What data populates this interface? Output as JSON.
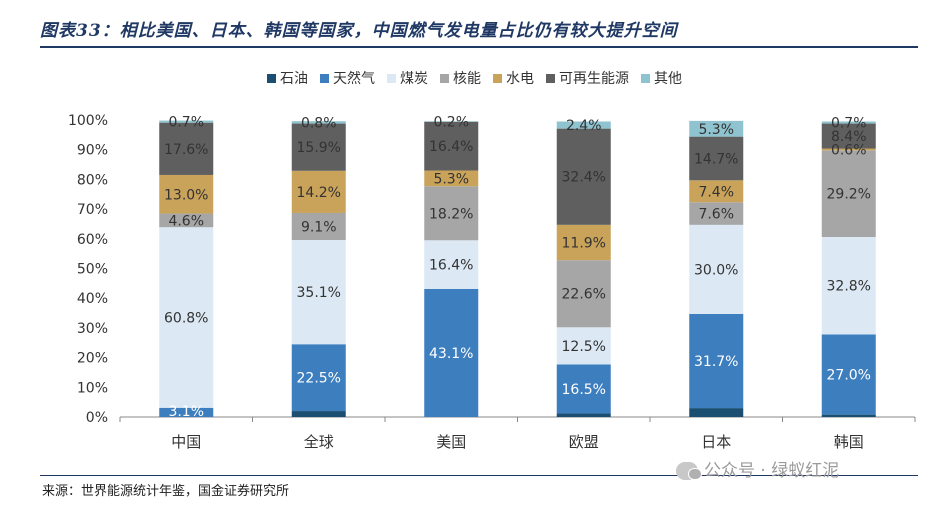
{
  "title": "图表33：相比美国、日本、韩国等国家，中国燃气发电量占比仍有较大提升空间",
  "source": "来源：世界能源统计年鉴，国金证券研究所",
  "watermark": "公众号 · 绿蚁红泥",
  "chart_data": {
    "type": "bar",
    "stacked": true,
    "categories": [
      "中国",
      "全球",
      "美国",
      "欧盟",
      "日本",
      "韩国"
    ],
    "ylim": [
      0,
      100
    ],
    "yticks": [
      "0%",
      "10%",
      "20%",
      "30%",
      "40%",
      "50%",
      "60%",
      "70%",
      "80%",
      "90%",
      "100%"
    ],
    "legend_position": "top",
    "series": [
      {
        "name": "石油",
        "color": "#1b4f72",
        "values": [
          0.0,
          2.0,
          0.0,
          1.2,
          3.0,
          0.8
        ],
        "labels": [
          "",
          "",
          "",
          "",
          "",
          ""
        ]
      },
      {
        "name": "天然气",
        "color": "#3d7ebf",
        "values": [
          3.1,
          22.5,
          43.1,
          16.5,
          31.7,
          27.0
        ],
        "labels": [
          "3.1%",
          "22.5%",
          "43.1%",
          "16.5%",
          "31.7%",
          "27.0%"
        ]
      },
      {
        "name": "煤炭",
        "color": "#dce9f5",
        "values": [
          60.8,
          35.1,
          16.4,
          12.5,
          30.0,
          32.8
        ],
        "labels": [
          "60.8%",
          "35.1%",
          "16.4%",
          "12.5%",
          "30.0%",
          "32.8%"
        ]
      },
      {
        "name": "核能",
        "color": "#a6a6a6",
        "values": [
          4.6,
          9.1,
          18.2,
          22.6,
          7.6,
          29.2
        ],
        "labels": [
          "4.6%",
          "9.1%",
          "18.2%",
          "22.6%",
          "7.6%",
          "29.2%"
        ]
      },
      {
        "name": "水电",
        "color": "#c9a35a",
        "values": [
          13.0,
          14.2,
          5.3,
          11.9,
          7.4,
          0.6
        ],
        "labels": [
          "13.0%",
          "14.2%",
          "5.3%",
          "11.9%",
          "7.4%",
          "0.6%"
        ]
      },
      {
        "name": "可再生能源",
        "color": "#5f5f5f",
        "values": [
          17.6,
          15.9,
          16.4,
          32.4,
          14.7,
          8.4
        ],
        "labels": [
          "17.6%",
          "15.9%",
          "16.4%",
          "32.4%",
          "14.7%",
          "8.4%"
        ]
      },
      {
        "name": "其他",
        "color": "#8fc3cf",
        "values": [
          0.7,
          0.8,
          0.2,
          2.4,
          5.3,
          0.7
        ],
        "labels": [
          "0.7%",
          "0.8%",
          "0.2%",
          "2.4%",
          "5.3%",
          "0.7%"
        ]
      }
    ]
  }
}
